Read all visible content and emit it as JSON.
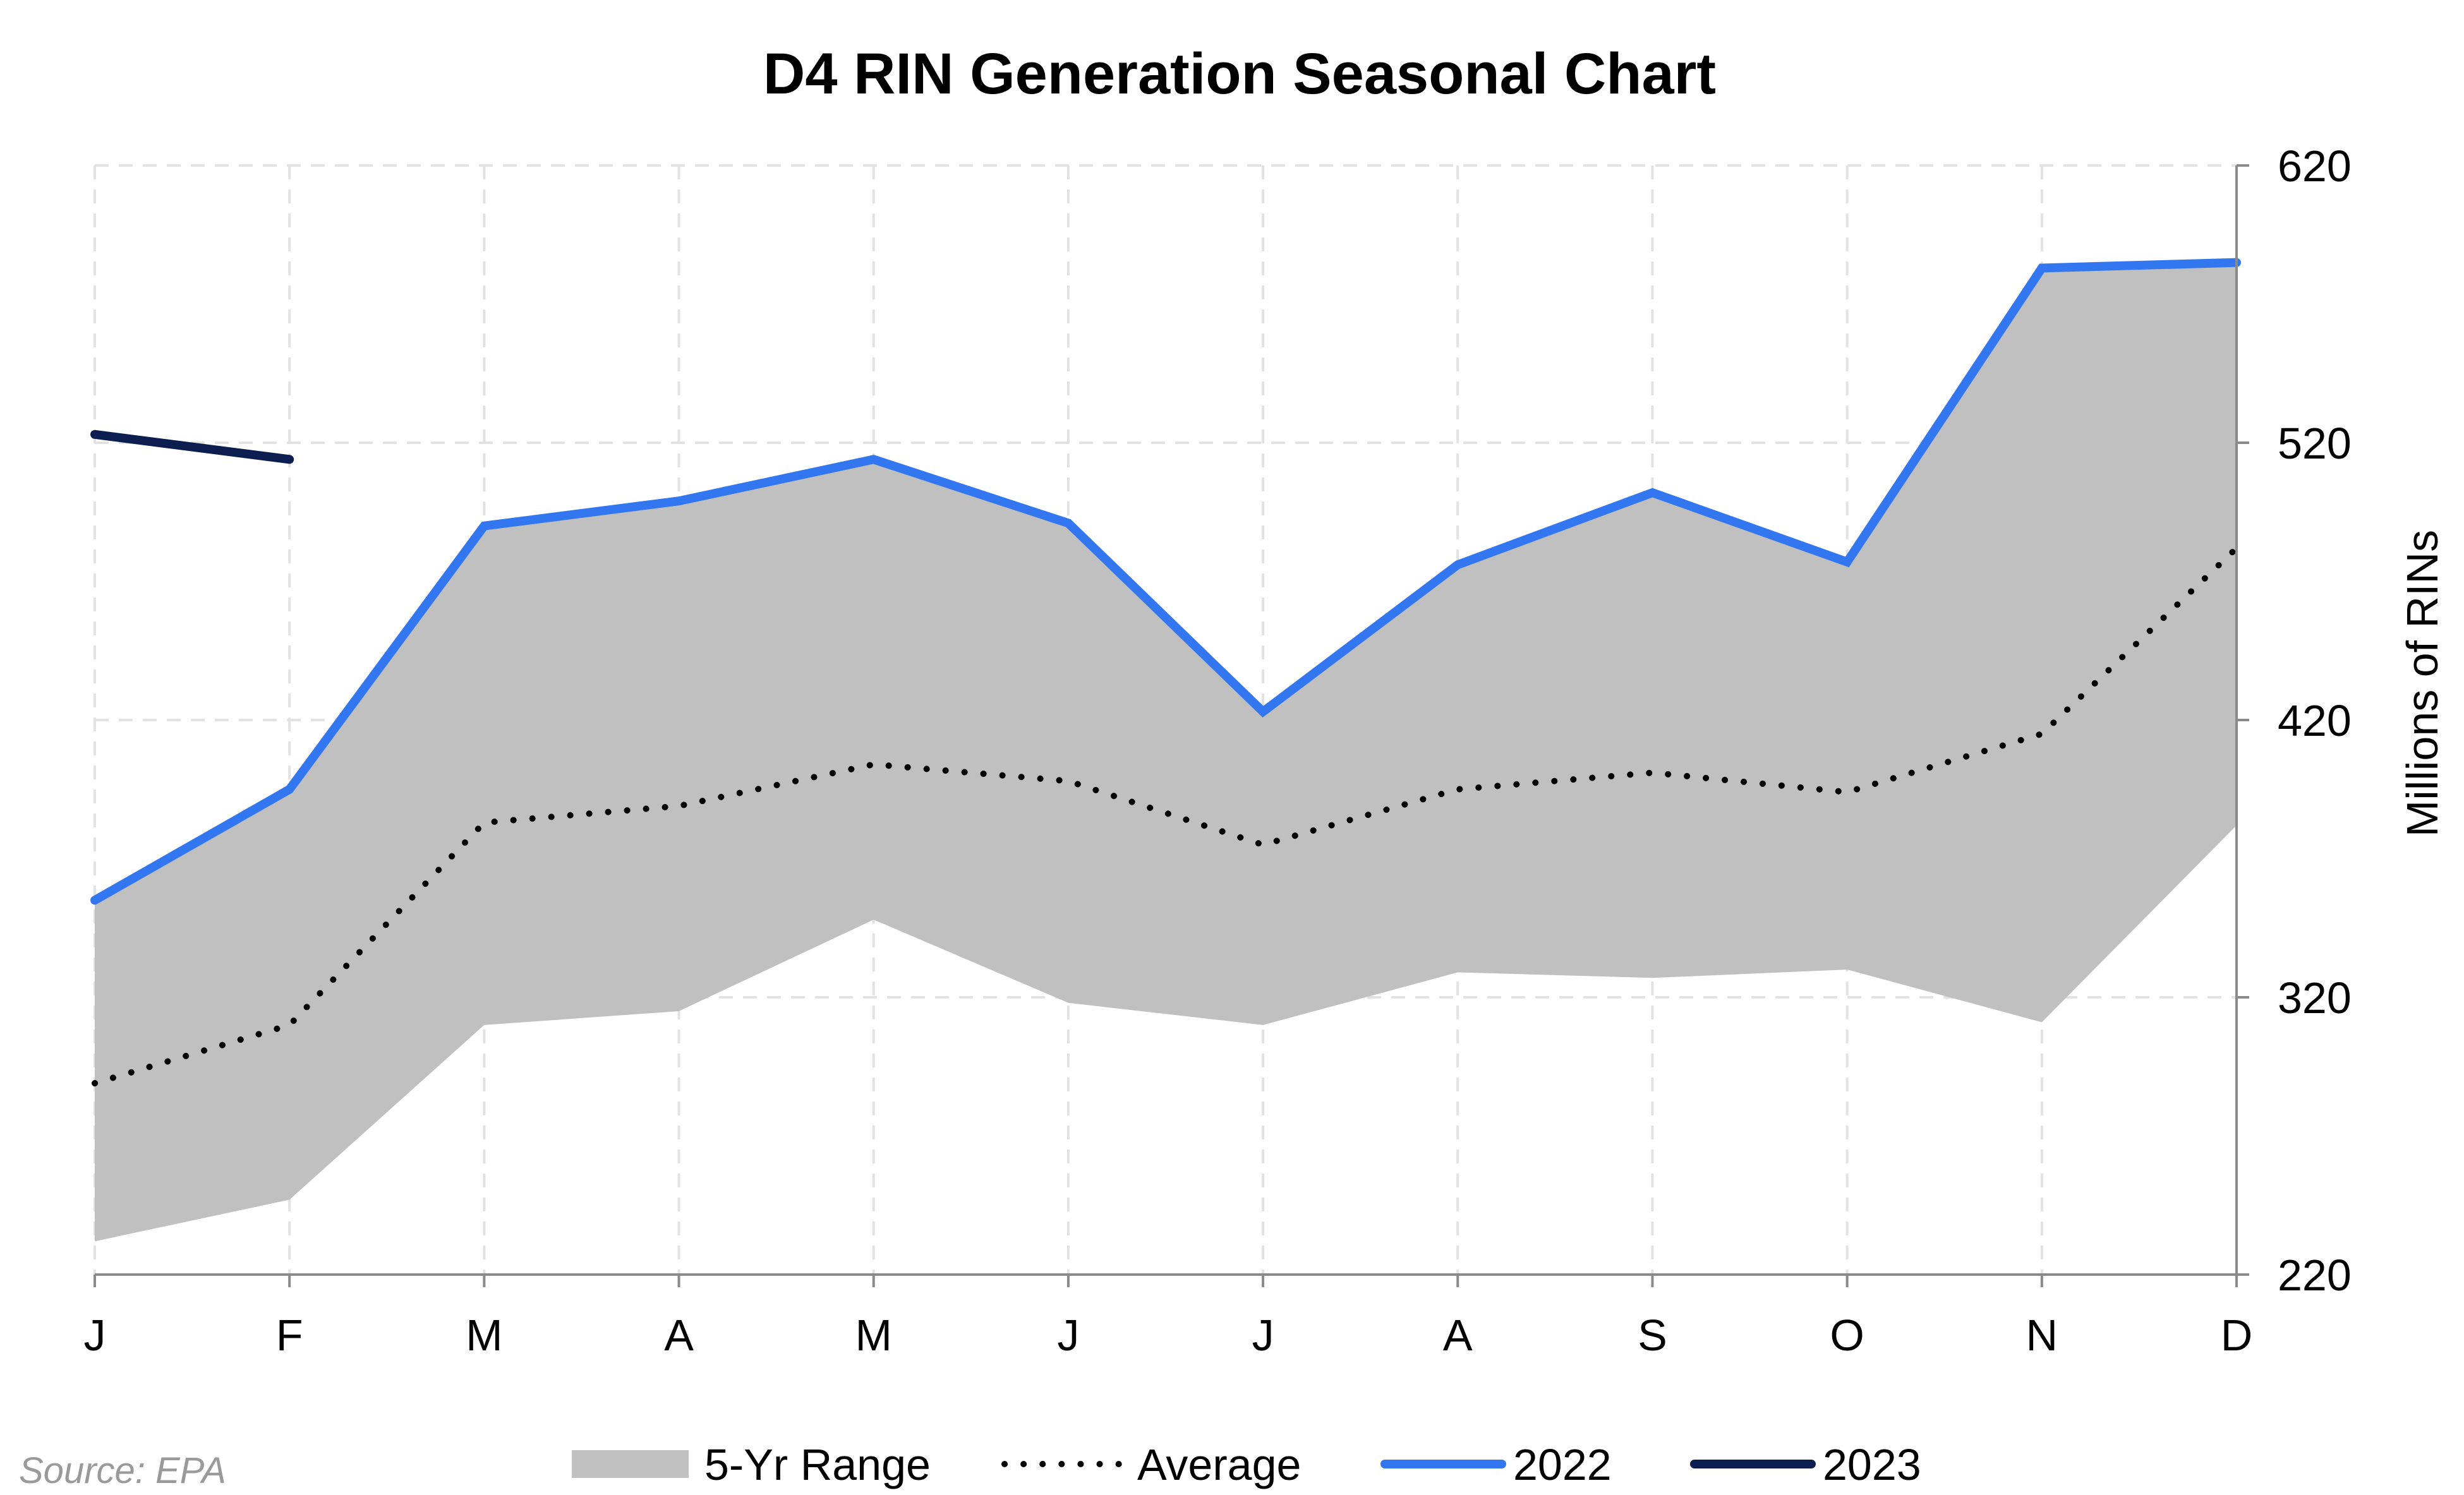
{
  "colors": {
    "range_fill": "#c0c0c0",
    "average": "#000000",
    "series_2022": "#3377f0",
    "series_2023": "#0c1e4f",
    "grid": "#e2e2e2",
    "axis": "#8a8a8a"
  },
  "source": "Source: EPA",
  "chart_data": {
    "type": "line",
    "title": "D4 RIN Generation Seasonal Chart",
    "ylabel": "Millions of RINs",
    "xlabel": "",
    "y_axis_side": "right",
    "ylim": [
      220,
      620
    ],
    "yticks": [
      220,
      320,
      420,
      520,
      620
    ],
    "grid": true,
    "legend_position": "bottom",
    "categories": [
      "J",
      "F",
      "M",
      "A",
      "M",
      "J",
      "J",
      "A",
      "S",
      "O",
      "N",
      "D"
    ],
    "range": {
      "name": "5-Yr Range",
      "low": [
        232,
        247,
        310,
        315,
        348,
        318,
        310,
        329,
        327,
        330,
        311,
        382
      ],
      "high": [
        355,
        395,
        490,
        499,
        514,
        491,
        423,
        476,
        502,
        477,
        583,
        585
      ]
    },
    "series": [
      {
        "name": "Average",
        "style": "dotted",
        "values": [
          289,
          310,
          383,
          389,
          404,
          398,
          375,
          395,
          401,
          394,
          415,
          482
        ]
      },
      {
        "name": "2022",
        "style": "solid",
        "values": [
          355,
          395,
          490,
          499,
          514,
          491,
          423,
          476,
          502,
          477,
          583,
          585
        ]
      },
      {
        "name": "2023",
        "style": "solid",
        "values": [
          523,
          514,
          null,
          null,
          null,
          null,
          null,
          null,
          null,
          null,
          null,
          null
        ]
      }
    ]
  }
}
